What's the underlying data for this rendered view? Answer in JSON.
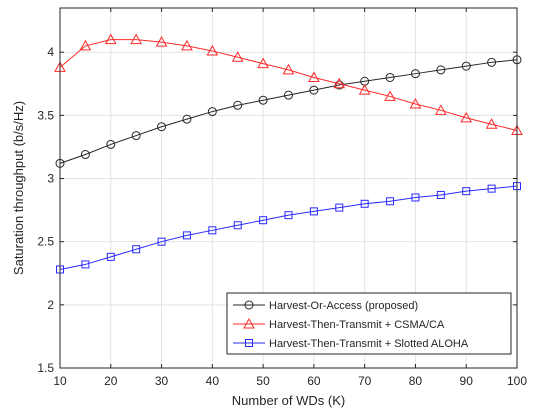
{
  "chart_data": {
    "type": "line",
    "title": "",
    "xlabel": "Number of WDs (K)",
    "ylabel": "Saturation throughput (b/s/Hz)",
    "xlim": [
      10,
      100
    ],
    "ylim": [
      1.5,
      4.35
    ],
    "x_ticks": [
      10,
      20,
      30,
      40,
      50,
      60,
      70,
      80,
      90,
      100
    ],
    "y_ticks": [
      1.5,
      2,
      2.5,
      3,
      3.5,
      4
    ],
    "x_tick_labels": [
      "10",
      "20",
      "30",
      "40",
      "50",
      "60",
      "70",
      "80",
      "90",
      "100"
    ],
    "y_tick_labels": [
      "1.5",
      "2",
      "2.5",
      "3",
      "3.5",
      "4"
    ],
    "grid": true,
    "legend_position": "bottom-right",
    "x": [
      10,
      15,
      20,
      25,
      30,
      35,
      40,
      45,
      50,
      55,
      60,
      65,
      70,
      75,
      80,
      85,
      90,
      95,
      100
    ],
    "series": [
      {
        "name": "Harvest-Or-Access (proposed)",
        "color": "#262626",
        "marker": "circle",
        "values": [
          3.12,
          3.19,
          3.27,
          3.34,
          3.41,
          3.47,
          3.53,
          3.58,
          3.62,
          3.66,
          3.7,
          3.74,
          3.77,
          3.8,
          3.83,
          3.86,
          3.89,
          3.92,
          3.94
        ]
      },
      {
        "name": "Harvest-Then-Transmit + CSMA/CA",
        "color": "#ff2a2a",
        "marker": "triangle",
        "values": [
          3.88,
          4.05,
          4.1,
          4.1,
          4.08,
          4.05,
          4.01,
          3.96,
          3.91,
          3.86,
          3.8,
          3.75,
          3.7,
          3.65,
          3.59,
          3.54,
          3.48,
          3.43,
          3.38
        ]
      },
      {
        "name": "Harvest-Then-Transmit + Slotted ALOHA",
        "color": "#2a2aff",
        "marker": "square",
        "values": [
          2.28,
          2.32,
          2.38,
          2.44,
          2.5,
          2.55,
          2.59,
          2.63,
          2.67,
          2.71,
          2.74,
          2.77,
          2.8,
          2.82,
          2.85,
          2.87,
          2.9,
          2.92,
          2.94
        ]
      }
    ]
  }
}
